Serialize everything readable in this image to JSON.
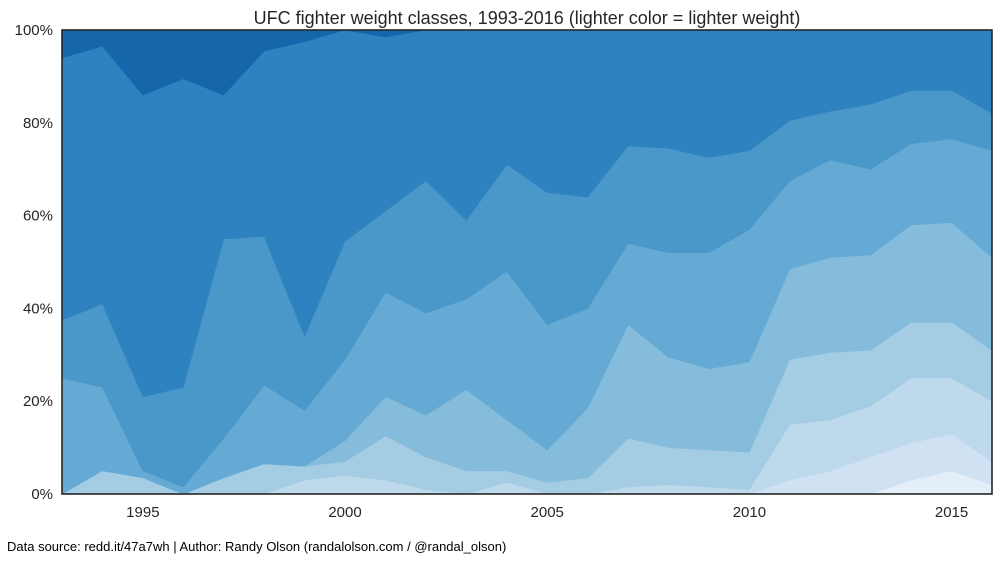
{
  "chart_data": {
    "type": "area",
    "stacked": "percent",
    "title": "UFC fighter weight classes, 1993-2016 (lighter color = lighter weight)",
    "xlabel": "",
    "ylabel": "",
    "xlim": [
      1993,
      2016
    ],
    "ylim": [
      0,
      100
    ],
    "x_ticks": [
      1995,
      2000,
      2005,
      2010,
      2015
    ],
    "y_ticks": [
      0,
      20,
      40,
      60,
      80,
      100
    ],
    "y_tick_format": "percent",
    "grid": false,
    "legend": "none",
    "x": [
      1993,
      1994,
      1995,
      1996,
      1997,
      1998,
      1999,
      2000,
      2001,
      2002,
      2003,
      2004,
      2005,
      2006,
      2007,
      2008,
      2009,
      2010,
      2011,
      2012,
      2013,
      2014,
      2015,
      2016
    ],
    "boundaries": [
      [
        0,
        0,
        0,
        0,
        0,
        0,
        0,
        0,
        0,
        0,
        0,
        0,
        0,
        0,
        0,
        0,
        0,
        0,
        0,
        0,
        0,
        3,
        5,
        2
      ],
      [
        0,
        0,
        0,
        0,
        0,
        0,
        0,
        0,
        0,
        0,
        0,
        0,
        0,
        0,
        0,
        0,
        0,
        0,
        3,
        5,
        8,
        11,
        13,
        7
      ],
      [
        0,
        0,
        0,
        0,
        0,
        0,
        3,
        4,
        3,
        1,
        0,
        2.5,
        0,
        0,
        1.5,
        2,
        1.5,
        1,
        15,
        16,
        19,
        25,
        25,
        20
      ],
      [
        0,
        5,
        3.5,
        0,
        3.5,
        6.5,
        6,
        7,
        12.5,
        8,
        5,
        5,
        2.5,
        3.5,
        12,
        10,
        9.5,
        9,
        29,
        30.5,
        31,
        37,
        37,
        31
      ],
      [
        0,
        5,
        3.5,
        0,
        3.5,
        6.5,
        6,
        11.5,
        21,
        17,
        22.5,
        16,
        9.5,
        18.5,
        36.5,
        29.5,
        27,
        28.5,
        48.5,
        51,
        51.5,
        58,
        58.5,
        51
      ],
      [
        25,
        23,
        5,
        1.5,
        12,
        23.5,
        18,
        29,
        43.5,
        39,
        42,
        48,
        36.5,
        40,
        54,
        52,
        52,
        57,
        67.5,
        72,
        70,
        75.5,
        76.5,
        74
      ],
      [
        37.5,
        41,
        21,
        23,
        55,
        55.5,
        34,
        54.5,
        61,
        67.5,
        59,
        71,
        65,
        64,
        75,
        74.5,
        72.5,
        74,
        80.5,
        82.5,
        84,
        87,
        87,
        82
      ],
      [
        94,
        96.5,
        86,
        89.5,
        86,
        95.5,
        97.5,
        100,
        98.5,
        100,
        100,
        100,
        100,
        100,
        100,
        100,
        100,
        100,
        100,
        100,
        100,
        100,
        100,
        100
      ]
    ],
    "colors": [
      "#e3eef9",
      "#cfe1f2",
      "#bed8ec",
      "#a4cce3",
      "#85bcdb",
      "#65aad4",
      "#4a97c9",
      "#2e82bf",
      "#1666ab",
      "#084488"
    ]
  },
  "footer": "Data source: redd.it/47a7wh | Author: Randy Olson (randalolson.com / @randal_olson)"
}
